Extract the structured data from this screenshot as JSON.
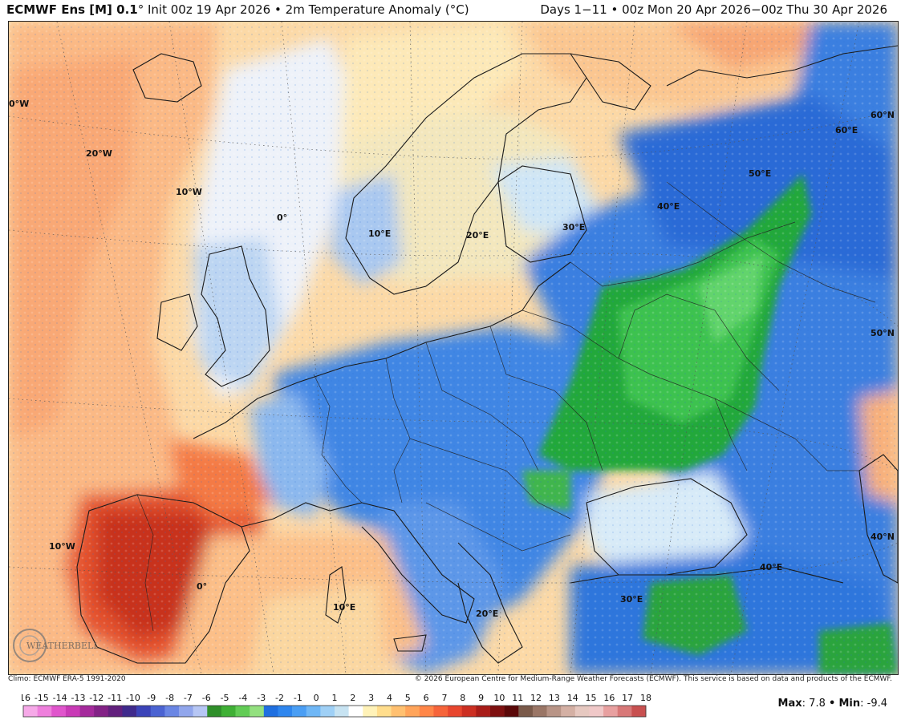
{
  "header": {
    "model": "ECMWF Ens [M] 0.1",
    "degree": "°",
    "init": "Init 00z 19 Apr 2026",
    "bullet": "•",
    "field": "2m Temperature Anomaly (°C)",
    "range": "Days 1−11 • 00z Mon 20 Apr 2026−00z Thu 30 Apr 2026"
  },
  "map": {
    "labels": [
      {
        "text": "0°W"
      },
      {
        "text": "20°W"
      },
      {
        "text": "10°W"
      },
      {
        "text": "0°"
      },
      {
        "text": "10°E"
      },
      {
        "text": "20°E"
      },
      {
        "text": "30°E"
      },
      {
        "text": "40°E"
      },
      {
        "text": "50°E"
      },
      {
        "text": "60°E"
      },
      {
        "text": "60°N"
      },
      {
        "text": "50°N"
      },
      {
        "text": "40°N"
      },
      {
        "text": "10°W"
      },
      {
        "text": "0°"
      },
      {
        "text": "10°E"
      },
      {
        "text": "20°E"
      },
      {
        "text": "30°E"
      },
      {
        "text": "40°E"
      }
    ],
    "logo": "WEATHERBELL"
  },
  "footer": {
    "climo": "Climo: ECMWF ERA-5 1991-2020",
    "credit": "© 2026 European Centre for Medium-Range Weather Forecasts (ECMWF). This service is based on data and products of the ECMWF."
  },
  "colorbar": {
    "ticks": [
      "-16",
      "-15",
      "-14",
      "-13",
      "-12",
      "-11",
      "-10",
      "-9",
      "-8",
      "-7",
      "-6",
      "-5",
      "-4",
      "-3",
      "-2",
      "-1",
      "0",
      "1",
      "2",
      "3",
      "4",
      "5",
      "6",
      "7",
      "8",
      "9",
      "10",
      "11",
      "12",
      "13",
      "14",
      "15",
      "16",
      "17",
      "18"
    ],
    "colors": [
      "#f6a9e8",
      "#ee7fdc",
      "#e055cc",
      "#c93ab6",
      "#a52a9c",
      "#832286",
      "#62207d",
      "#3f2a8c",
      "#3b43b8",
      "#4b63d2",
      "#6a86e4",
      "#91a6ec",
      "#b6c6f4",
      "#2f8f2a",
      "#3fb035",
      "#62cc55",
      "#93e07f",
      "#1f6fe0",
      "#2f86ee",
      "#4a9ef4",
      "#6fb7f6",
      "#9fd0f6",
      "#c7e3f2",
      "#ffffff",
      "#fff2b8",
      "#ffdd8c",
      "#ffc070",
      "#ffa45a",
      "#ff8648",
      "#f6643a",
      "#e8462e",
      "#cc2f22",
      "#a81c18",
      "#7e1010",
      "#5a0808",
      "#7a5a4a",
      "#9a7666",
      "#b89486",
      "#d4b0a4",
      "#e6c8c0",
      "#f0c8c8",
      "#e8a0a0",
      "#d87878",
      "#c85050"
    ]
  },
  "stats": {
    "max_label": "Max",
    "max_value": "7.8",
    "separator": "•",
    "min_label": "Min",
    "min_value": "-9.4"
  }
}
